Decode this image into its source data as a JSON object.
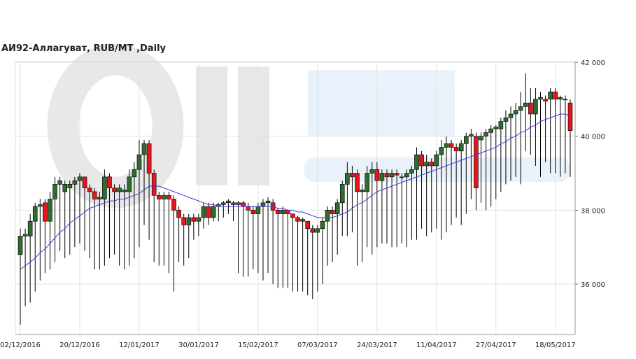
{
  "chart_data": {
    "type": "candlestick",
    "title": "АИ92-Аллагуват,  RUB/MT ,Daily",
    "categories": [
      "02/12/2016",
      null,
      null,
      null,
      null,
      null,
      null,
      null,
      null,
      null,
      null,
      null,
      "20/12/2016",
      null,
      null,
      null,
      null,
      null,
      null,
      null,
      null,
      null,
      null,
      null,
      "12/01/2017",
      null,
      null,
      null,
      null,
      null,
      null,
      null,
      null,
      null,
      null,
      null,
      "30/01/2017",
      null,
      null,
      null,
      null,
      null,
      null,
      null,
      null,
      null,
      null,
      null,
      "15/02/2017",
      null,
      null,
      null,
      null,
      null,
      null,
      null,
      null,
      null,
      null,
      null,
      "07/03/2017",
      null,
      null,
      null,
      null,
      null,
      null,
      null,
      null,
      null,
      null,
      null,
      "24/03/2017",
      null,
      null,
      null,
      null,
      null,
      null,
      null,
      null,
      null,
      null,
      null,
      "11/04/2017",
      null,
      null,
      null,
      null,
      null,
      null,
      null,
      null,
      null,
      null,
      null,
      "27/04/2017",
      null,
      null,
      null,
      null,
      null,
      null,
      null,
      null,
      null,
      null,
      null,
      "18/05/2017",
      null,
      null,
      null
    ],
    "open": [
      36800,
      37300,
      37300,
      37700,
      38100,
      38200,
      37700,
      38300,
      38700,
      38500,
      38600,
      38700,
      38800,
      38900,
      38600,
      38500,
      38300,
      38300,
      38900,
      38600,
      38500,
      38500,
      38500,
      38900,
      39100,
      39500,
      39800,
      39000,
      38400,
      38300,
      38400,
      38300,
      38000,
      37800,
      37600,
      37800,
      37700,
      37800,
      38100,
      37800,
      38100,
      38150,
      38200,
      38200,
      38150,
      38200,
      38100,
      38000,
      37900,
      38100,
      38200,
      38200,
      38000,
      37900,
      38000,
      37900,
      37800,
      37700,
      37700,
      37500,
      37400,
      37500,
      37700,
      38000,
      37900,
      38200,
      38700,
      39000,
      39000,
      38500,
      38500,
      39000,
      39100,
      38800,
      39000,
      38900,
      39000,
      38900,
      38900,
      39000,
      39100,
      39500,
      39200,
      39300,
      39200,
      39500,
      39700,
      39800,
      39700,
      39600,
      39800,
      40000,
      40000,
      39900,
      40000,
      40100,
      40200,
      40200,
      40400,
      40500,
      40600,
      40700,
      40800,
      40900,
      40600,
      41000,
      41000,
      41000,
      41200,
      41000,
      41000,
      40900
    ],
    "high": [
      37500,
      37500,
      37900,
      38200,
      38300,
      38300,
      38500,
      38900,
      38900,
      38800,
      38800,
      38900,
      39000,
      38900,
      38700,
      38600,
      38500,
      39100,
      39000,
      38700,
      38700,
      38700,
      39100,
      39300,
      39900,
      39900,
      39900,
      39100,
      38500,
      38500,
      38500,
      38400,
      38100,
      37900,
      37900,
      37900,
      37900,
      38200,
      38200,
      38200,
      38200,
      38250,
      38300,
      38250,
      38250,
      38250,
      38200,
      38100,
      38200,
      38300,
      38350,
      38300,
      38050,
      38100,
      38000,
      37900,
      37850,
      37800,
      37700,
      37600,
      37600,
      37800,
      38100,
      38100,
      38300,
      38800,
      39300,
      39200,
      39100,
      38700,
      39200,
      39300,
      39300,
      39100,
      39100,
      39100,
      39100,
      39000,
      39100,
      39200,
      39700,
      39600,
      39500,
      39400,
      39600,
      39900,
      40000,
      39900,
      39800,
      39900,
      40100,
      40200,
      40100,
      40100,
      40200,
      40300,
      40300,
      40500,
      40700,
      40800,
      40900,
      41200,
      41700,
      41300,
      41300,
      41200,
      41100,
      41300,
      41300,
      41100,
      41100,
      41000
    ],
    "low": [
      34900,
      35400,
      35500,
      35800,
      36100,
      36300,
      36400,
      36600,
      36900,
      36700,
      36800,
      37000,
      37100,
      36900,
      36700,
      36400,
      36400,
      36500,
      36700,
      36800,
      36500,
      36400,
      36500,
      36700,
      37000,
      37600,
      37200,
      36600,
      36500,
      36500,
      36300,
      35800,
      36600,
      36500,
      36700,
      37200,
      37300,
      37500,
      37600,
      37700,
      37700,
      37800,
      37900,
      37700,
      36300,
      36200,
      36200,
      36400,
      36300,
      36100,
      36300,
      36000,
      35900,
      35900,
      35900,
      35800,
      35800,
      35800,
      35700,
      35600,
      35800,
      36000,
      36500,
      36600,
      36800,
      37300,
      37300,
      37400,
      36500,
      36600,
      37000,
      36800,
      37000,
      37100,
      37100,
      37000,
      37000,
      37100,
      37000,
      37200,
      37200,
      37500,
      37300,
      37400,
      37500,
      37200,
      37400,
      37600,
      37800,
      37600,
      37900,
      38300,
      38000,
      38200,
      38000,
      38100,
      38300,
      38500,
      38700,
      38800,
      38900,
      38700,
      39600,
      39500,
      39200,
      38900,
      39300,
      39000,
      39000,
      38900,
      39000,
      38900
    ],
    "close": [
      37300,
      37350,
      37700,
      38100,
      38150,
      37700,
      38300,
      38700,
      38800,
      38700,
      38700,
      38800,
      38900,
      38600,
      38500,
      38300,
      38350,
      38900,
      38600,
      38500,
      38600,
      38550,
      38900,
      39100,
      39500,
      39800,
      39000,
      38400,
      38300,
      38400,
      38300,
      38000,
      37800,
      37600,
      37800,
      37700,
      37800,
      38100,
      37800,
      38100,
      38150,
      38200,
      38250,
      38150,
      38200,
      38100,
      38000,
      37900,
      38100,
      38200,
      38250,
      38000,
      37900,
      38000,
      37900,
      37800,
      37700,
      37750,
      37500,
      37400,
      37500,
      37700,
      38000,
      37900,
      38200,
      38700,
      39000,
      38900,
      38500,
      38550,
      39000,
      39100,
      38800,
      39000,
      38900,
      39000,
      38950,
      38900,
      39000,
      39100,
      39500,
      39200,
      39300,
      39200,
      39500,
      39700,
      39800,
      39700,
      39600,
      39800,
      40000,
      40050,
      38600,
      40000,
      40100,
      40200,
      40250,
      40400,
      40500,
      40600,
      40700,
      40800,
      40900,
      40600,
      41000,
      41050,
      40950,
      41200,
      41000,
      41050,
      41000,
      40150
    ],
    "ma_values": [
      36400,
      36500,
      36600,
      36700,
      36850,
      36950,
      37100,
      37250,
      37400,
      37500,
      37650,
      37750,
      37850,
      37950,
      38050,
      38100,
      38150,
      38200,
      38250,
      38250,
      38300,
      38300,
      38350,
      38400,
      38450,
      38550,
      38650,
      38650,
      38650,
      38600,
      38550,
      38500,
      38450,
      38400,
      38350,
      38300,
      38250,
      38200,
      38150,
      38150,
      38100,
      38100,
      38100,
      38100,
      38100,
      38100,
      38100,
      38100,
      38100,
      38100,
      38100,
      38100,
      38050,
      38050,
      38000,
      38000,
      37950,
      37950,
      37900,
      37850,
      37800,
      37800,
      37800,
      37800,
      37850,
      37900,
      37950,
      38050,
      38150,
      38200,
      38300,
      38400,
      38500,
      38550,
      38600,
      38650,
      38700,
      38750,
      38800,
      38850,
      38900,
      38950,
      39000,
      39050,
      39100,
      39150,
      39200,
      39250,
      39300,
      39350,
      39400,
      39450,
      39500,
      39550,
      39600,
      39650,
      39700,
      39800,
      39850,
      39950,
      40000,
      40100,
      40150,
      40250,
      40300,
      40400,
      40450,
      40500,
      40550,
      40600,
      40600,
      40550
    ],
    "up_color": "#2f6b2f",
    "down_color": "#e3161c",
    "ma_color": "#3b3bdc",
    "ylim": [
      34600,
      42000
    ],
    "yticks": [
      {
        "value": 36000,
        "label": "36 000"
      },
      {
        "value": 38000,
        "label": "38 000"
      },
      {
        "value": 40000,
        "label": "40 000"
      },
      {
        "value": 42000,
        "label": "42 000"
      }
    ],
    "grid": true
  }
}
